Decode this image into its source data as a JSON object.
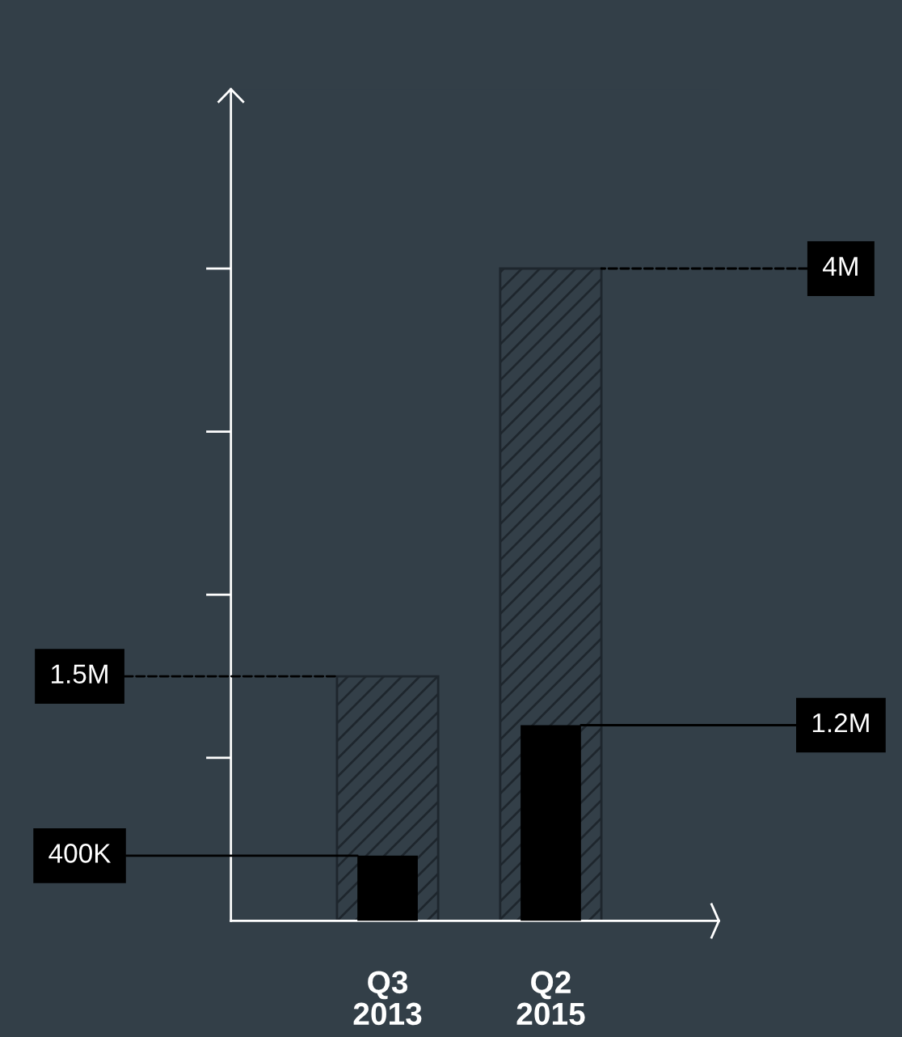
{
  "chart_data": {
    "type": "bar",
    "categories": [
      "Q3\n2013",
      "Q2\n2015"
    ],
    "series": [
      {
        "color": "#1e262d",
        "values": [
          1500000,
          4000000
        ],
        "value_labels": [
          "1.5M",
          "4M"
        ]
      },
      {
        "color": "#000000",
        "values": [
          400000,
          1200000
        ],
        "value_labels": [
          "400K",
          "1.2M"
        ]
      }
    ],
    "ylim": [
      0,
      5100000
    ],
    "yticks": [
      {
        "value": 1000000,
        "label": null
      },
      {
        "value": 2000000,
        "label": null
      },
      {
        "value": 3000000,
        "label": null
      },
      {
        "value": 4000000,
        "label": null
      }
    ],
    "grid": false,
    "legend": false
  }
}
